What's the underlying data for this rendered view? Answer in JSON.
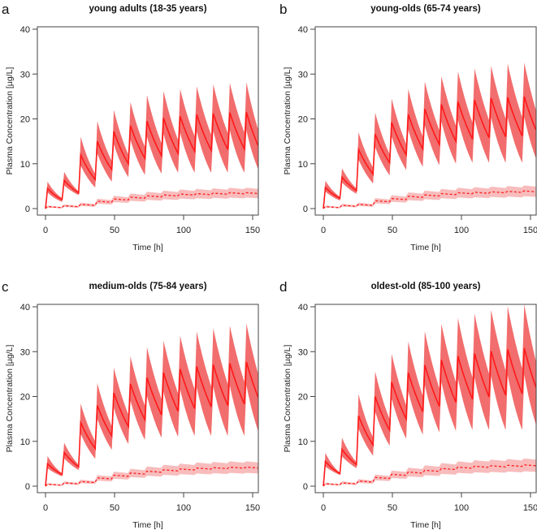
{
  "chart_data": [
    {
      "panel": "a",
      "type": "area",
      "title": "young adults (18-35 years)",
      "xlabel": "Time [h]",
      "ylabel": "Plasma Concentration [µg/L]",
      "xlim": [
        0,
        154
      ],
      "ylim": [
        0,
        40
      ],
      "xticks": [
        "0",
        "50",
        "100",
        "150"
      ],
      "yticks": [
        "0",
        "10",
        "20",
        "30",
        "40"
      ],
      "dose_times": [
        0,
        12,
        24,
        36,
        48,
        60,
        72,
        84,
        96,
        108,
        120,
        132,
        144
      ],
      "median_peak": [
        4.5,
        6.3,
        12,
        15,
        17.2,
        18.5,
        19.5,
        20.2,
        20.6,
        21,
        21.2,
        21.4,
        21.5
      ],
      "median_trough": [
        2,
        3.5,
        6.5,
        8.7,
        10,
        11.2,
        11.8,
        12.3,
        12.8,
        13,
        13.2,
        13.3,
        14
      ],
      "upper_peak": [
        6,
        8.2,
        16,
        19.5,
        22,
        23.8,
        25.3,
        26.2,
        26.7,
        27.3,
        27.7,
        28,
        28.2
      ],
      "lower_trough": [
        1.5,
        3,
        4.7,
        6,
        7,
        7.5,
        7.8,
        8,
        8,
        8,
        8,
        8,
        8.8
      ],
      "dashed_level": [
        0.3,
        0.5,
        0.8,
        1.5,
        2,
        2.4,
        2.7,
        2.9,
        3.1,
        3.2,
        3.3,
        3.4,
        3.4
      ]
    },
    {
      "panel": "b",
      "type": "area",
      "title": "young-olds (65-74 years)",
      "xlabel": "Time [h]",
      "ylabel": "Plasma Concentration [µg/L]",
      "xlim": [
        0,
        154
      ],
      "ylim": [
        0,
        40
      ],
      "xticks": [
        "0",
        "50",
        "100",
        "150"
      ],
      "yticks": [
        "0",
        "10",
        "20",
        "30",
        "40"
      ],
      "dose_times": [
        0,
        12,
        24,
        36,
        48,
        60,
        72,
        84,
        96,
        108,
        120,
        132,
        144
      ],
      "median_peak": [
        4.7,
        7,
        13.2,
        16.6,
        19.2,
        21,
        22.2,
        23.2,
        23.8,
        24.2,
        24.6,
        24.8,
        25
      ],
      "median_trough": [
        2.3,
        4,
        7.7,
        10.2,
        12,
        13.3,
        14.3,
        15,
        15.5,
        15.8,
        16,
        16.2,
        17.5
      ],
      "upper_peak": [
        6.2,
        9,
        17,
        21.4,
        24.5,
        26.7,
        28.3,
        29.5,
        30.6,
        31.3,
        31.8,
        32.3,
        32.6
      ],
      "lower_trough": [
        1.8,
        3.3,
        5.6,
        7.4,
        8.6,
        9.3,
        9.7,
        10,
        10.2,
        10.2,
        10.2,
        10.2,
        11.2
      ],
      "dashed_level": [
        0.3,
        0.6,
        0.8,
        1.6,
        2.1,
        2.6,
        2.9,
        3.2,
        3.4,
        3.5,
        3.6,
        3.7,
        3.8
      ]
    },
    {
      "panel": "c",
      "type": "area",
      "title": "medium-olds (75-84 years)",
      "xlabel": "Time [h]",
      "ylabel": "Plasma Concentration [µg/L]",
      "xlim": [
        0,
        154
      ],
      "ylim": [
        0,
        40
      ],
      "xticks": [
        "0",
        "50",
        "100",
        "150"
      ],
      "yticks": [
        "0",
        "10",
        "20",
        "30",
        "40"
      ],
      "dose_times": [
        0,
        12,
        24,
        36,
        48,
        60,
        72,
        84,
        96,
        108,
        120,
        132,
        144
      ],
      "median_peak": [
        5,
        7.5,
        14.2,
        18,
        20.8,
        22.8,
        24.2,
        25.3,
        26.1,
        26.7,
        27.1,
        27.4,
        27.7
      ],
      "median_trough": [
        2.6,
        4.3,
        8.4,
        11.2,
        13.3,
        14.8,
        15.9,
        16.7,
        17.3,
        17.7,
        18,
        18.3,
        19.8
      ],
      "upper_peak": [
        6.7,
        9.7,
        18.4,
        23,
        26.4,
        29,
        31,
        32.4,
        33.6,
        34.5,
        35.2,
        35.8,
        36.3
      ],
      "lower_trough": [
        2.2,
        3.6,
        6.1,
        8.1,
        9.4,
        10.3,
        10.8,
        11,
        11.2,
        11.2,
        11.2,
        11.2,
        12.3
      ],
      "dashed_level": [
        0.3,
        0.6,
        0.9,
        1.7,
        2.3,
        2.8,
        3.2,
        3.5,
        3.7,
        3.9,
        4.0,
        4.1,
        4.1
      ]
    },
    {
      "panel": "d",
      "type": "area",
      "title": "oldest-old (85-100 years)",
      "xlabel": "Time [h]",
      "ylabel": "Plasma Concentration [µg/L]",
      "xlim": [
        0,
        154
      ],
      "ylim": [
        0,
        40
      ],
      "xticks": [
        "0",
        "50",
        "100",
        "150"
      ],
      "yticks": [
        "0",
        "10",
        "20",
        "30",
        "40"
      ],
      "dose_times": [
        0,
        12,
        24,
        36,
        48,
        60,
        72,
        84,
        96,
        108,
        120,
        132,
        144
      ],
      "median_peak": [
        5.5,
        8.2,
        15.7,
        20,
        23.2,
        25.3,
        27,
        28.1,
        29,
        29.6,
        30.1,
        30.5,
        30.8
      ],
      "median_trough": [
        2.8,
        4.8,
        9.2,
        12.5,
        15,
        16.6,
        17.8,
        18.7,
        19.4,
        19.9,
        20.3,
        20.6,
        22
      ],
      "upper_peak": [
        7.4,
        10.8,
        20.5,
        25.6,
        29.5,
        32.3,
        34.5,
        36.2,
        37.5,
        38.5,
        39.3,
        40.1,
        40.6
      ],
      "lower_trough": [
        2.5,
        4,
        6.8,
        9,
        10.6,
        11.5,
        12,
        12.3,
        12.5,
        12.5,
        12.5,
        12.5,
        13.7
      ],
      "dashed_level": [
        0.4,
        0.6,
        1.0,
        1.8,
        2.5,
        3.0,
        3.4,
        3.8,
        4.1,
        4.3,
        4.4,
        4.5,
        4.6
      ]
    }
  ],
  "colors": {
    "band": "#f26d6d",
    "line": "#ff1a1a",
    "dashed_band": "#f8bcbc",
    "dashed_line": "#ff2020"
  }
}
